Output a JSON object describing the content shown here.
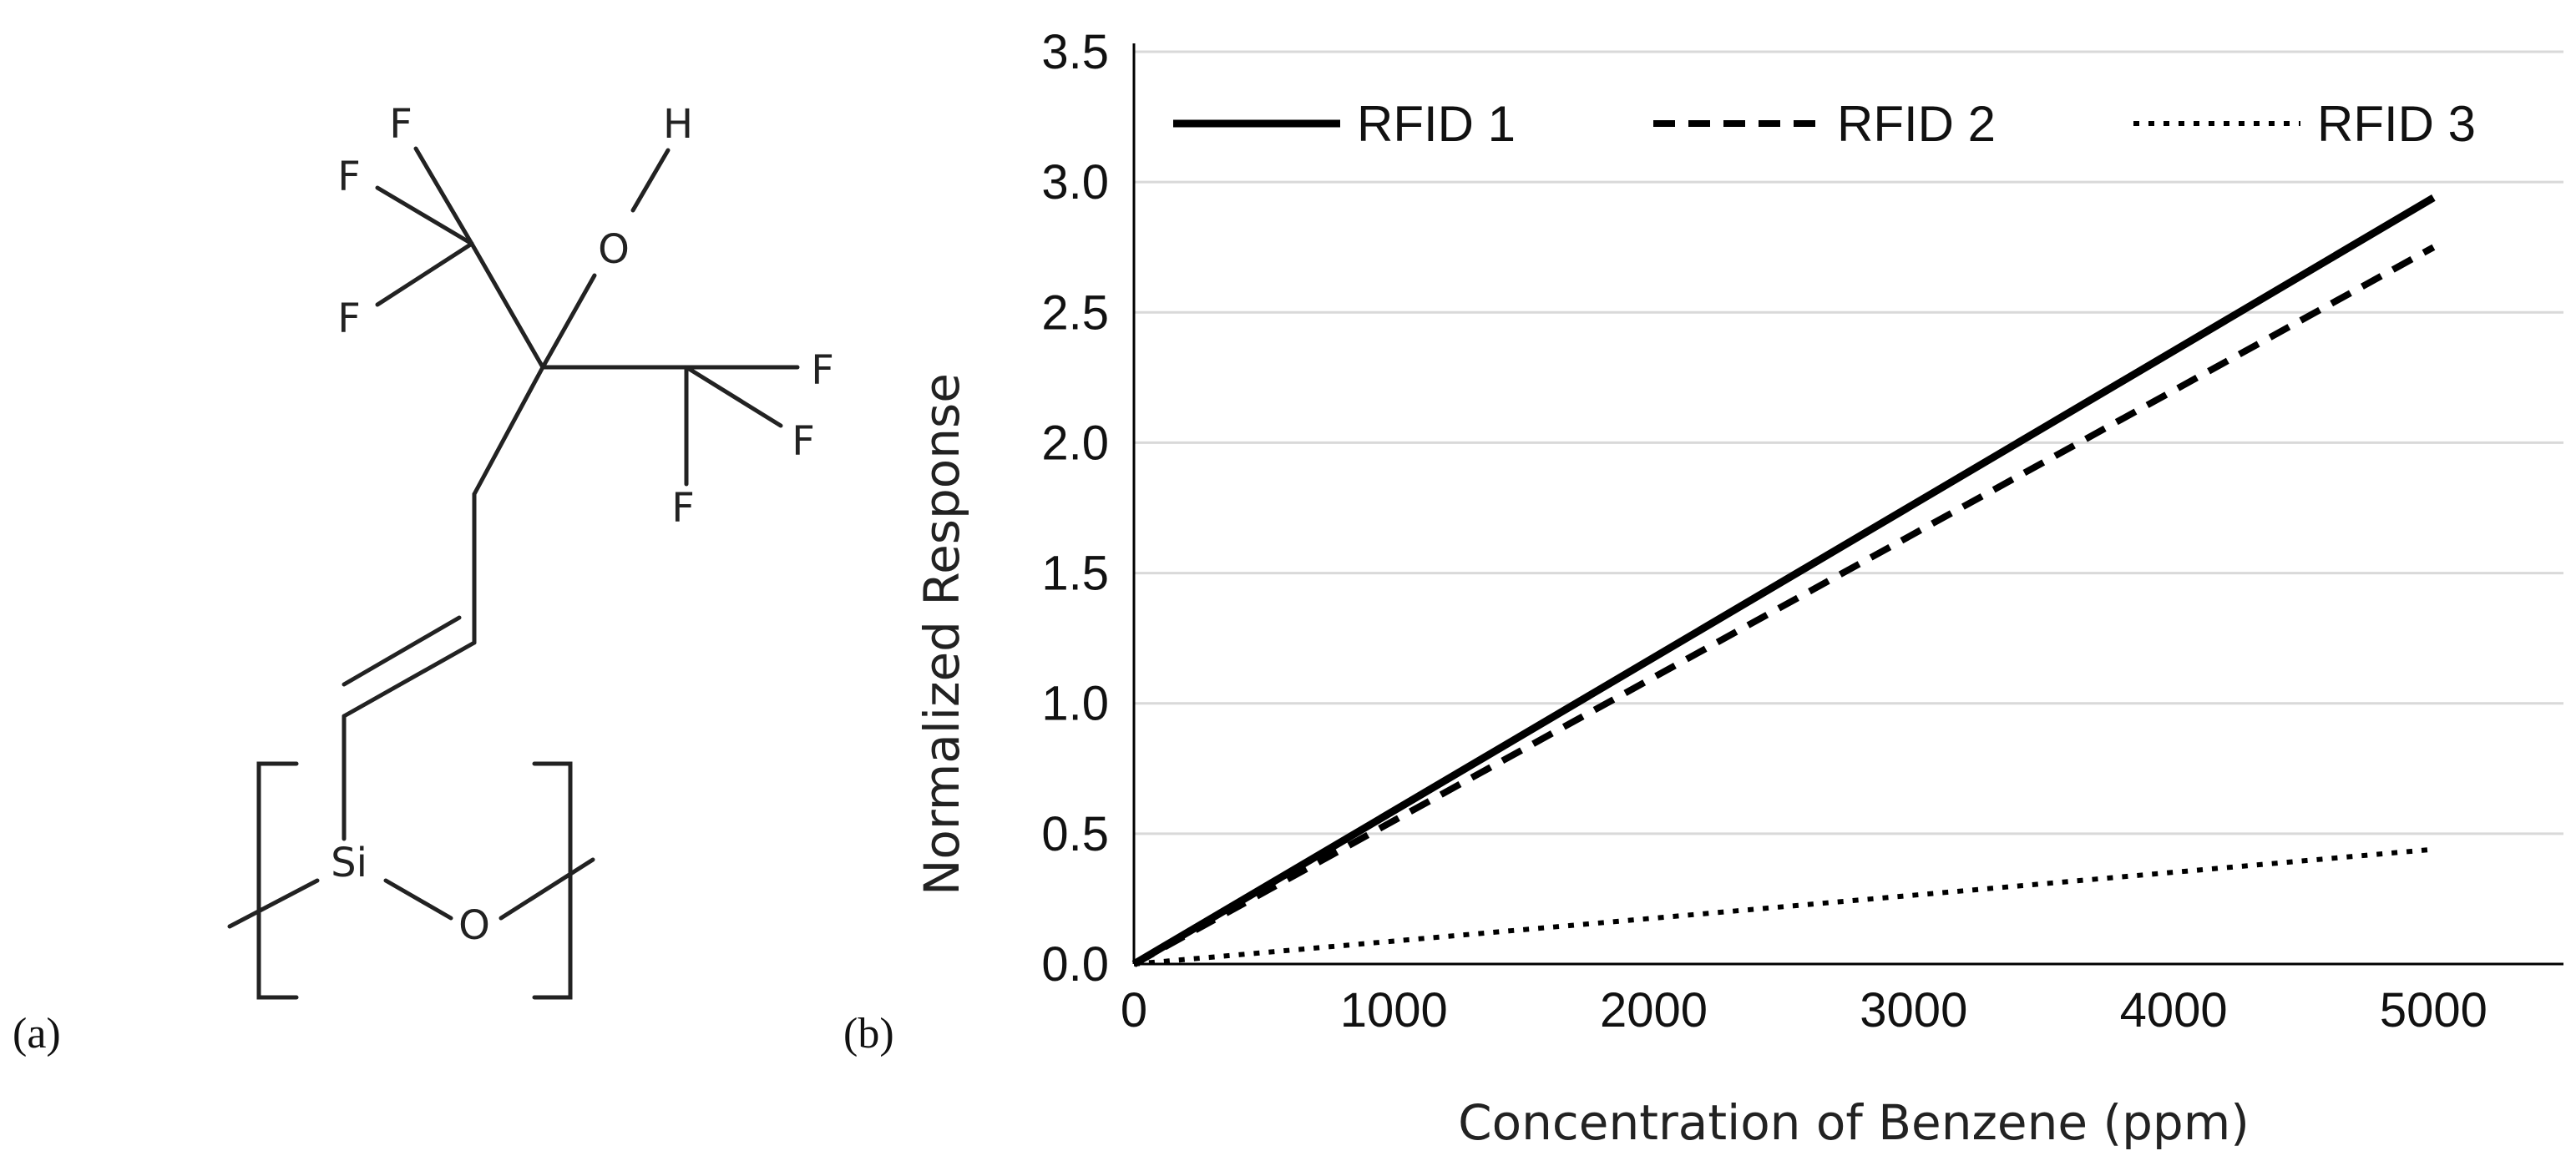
{
  "panel_a": {
    "label": "(a)",
    "atoms": {
      "f1": "F",
      "f2": "F",
      "f3": "F",
      "f4": "F",
      "f5": "F",
      "f6": "F",
      "h": "H",
      "o_hydroxyl": "O",
      "si": "Si",
      "o_backbone": "O"
    }
  },
  "panel_b": {
    "label": "(b)"
  },
  "chart_data": {
    "type": "line",
    "title": "",
    "xlabel": "Concentration of Benzene (ppm)",
    "ylabel": "Normalized Response",
    "xlim": [
      0,
      5500
    ],
    "ylim": [
      0,
      3.5
    ],
    "x_ticks": [
      0,
      1000,
      2000,
      3000,
      4000,
      5000
    ],
    "y_ticks": [
      0.0,
      0.5,
      1.0,
      1.5,
      2.0,
      2.5,
      3.0,
      3.5
    ],
    "x_tick_labels": [
      "0",
      "1000",
      "2000",
      "3000",
      "4000",
      "5000"
    ],
    "y_tick_labels": [
      "0.0",
      "0.5",
      "1.0",
      "1.5",
      "2.0",
      "2.5",
      "3.0",
      "3.5"
    ],
    "grid": "horizontal",
    "legend_position": "top",
    "series": [
      {
        "name": "RFID 1",
        "style": "solid",
        "color": "#000000",
        "x": [
          0,
          5000
        ],
        "y": [
          0,
          2.94
        ]
      },
      {
        "name": "RFID 2",
        "style": "dashed",
        "color": "#000000",
        "x": [
          0,
          5000
        ],
        "y": [
          0,
          2.75
        ]
      },
      {
        "name": "RFID 3",
        "style": "dotted",
        "color": "#000000",
        "x": [
          0,
          5000
        ],
        "y": [
          0,
          0.44
        ]
      }
    ]
  }
}
